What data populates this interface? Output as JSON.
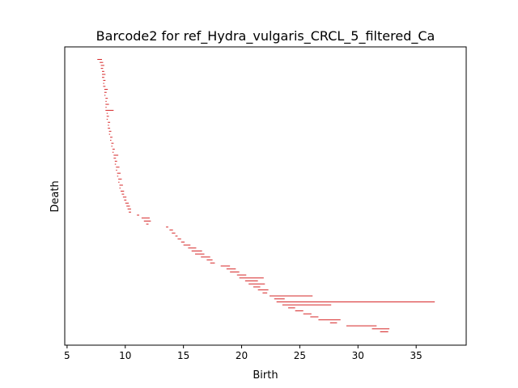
{
  "chart_data": {
    "type": "barcode",
    "title": "Barcode2 for ref_Hydra_vulgaris_CRCL_5_filtered_Ca",
    "xlabel": "Birth",
    "ylabel": "Death",
    "xlim": [
      4.8,
      39.3
    ],
    "xticks": [
      5,
      10,
      15,
      20,
      25,
      30,
      35
    ],
    "xtick_labels": [
      "5",
      "10",
      "15",
      "20",
      "25",
      "30",
      "35"
    ],
    "yticks_shown": false,
    "grid": false,
    "bar_color": "#d62728",
    "intervals": [
      [
        7.6,
        8.0
      ],
      [
        7.8,
        8.1
      ],
      [
        7.9,
        8.2
      ],
      [
        7.9,
        8.1
      ],
      [
        8.0,
        8.2
      ],
      [
        8.0,
        8.3
      ],
      [
        8.0,
        8.2
      ],
      [
        8.1,
        8.3
      ],
      [
        8.1,
        8.2
      ],
      [
        8.1,
        8.3
      ],
      [
        8.2,
        8.5
      ],
      [
        8.2,
        8.4
      ],
      [
        8.2,
        8.3
      ],
      [
        8.3,
        8.5
      ],
      [
        8.3,
        8.4
      ],
      [
        8.3,
        8.6
      ],
      [
        8.3,
        8.4
      ],
      [
        8.3,
        9.0
      ],
      [
        8.4,
        8.5
      ],
      [
        8.4,
        8.6
      ],
      [
        8.4,
        8.5
      ],
      [
        8.5,
        8.7
      ],
      [
        8.5,
        8.6
      ],
      [
        8.5,
        8.7
      ],
      [
        8.6,
        8.8
      ],
      [
        8.6,
        8.7
      ],
      [
        8.7,
        8.9
      ],
      [
        8.7,
        8.8
      ],
      [
        8.8,
        9.0
      ],
      [
        8.8,
        8.9
      ],
      [
        8.9,
        9.1
      ],
      [
        8.9,
        9.0
      ],
      [
        9.0,
        9.4
      ],
      [
        9.0,
        9.2
      ],
      [
        9.1,
        9.3
      ],
      [
        9.1,
        9.2
      ],
      [
        9.2,
        9.5
      ],
      [
        9.2,
        9.3
      ],
      [
        9.3,
        9.6
      ],
      [
        9.3,
        9.4
      ],
      [
        9.4,
        9.7
      ],
      [
        9.4,
        9.5
      ],
      [
        9.5,
        9.8
      ],
      [
        9.5,
        9.6
      ],
      [
        9.6,
        9.9
      ],
      [
        9.7,
        9.9
      ],
      [
        9.8,
        10.1
      ],
      [
        9.9,
        10.1
      ],
      [
        10.0,
        10.3
      ],
      [
        10.1,
        10.4
      ],
      [
        10.2,
        10.5
      ],
      [
        10.3,
        10.5
      ],
      [
        11.0,
        11.2
      ],
      [
        11.4,
        12.1
      ],
      [
        11.6,
        12.2
      ],
      [
        11.8,
        12.0
      ],
      [
        13.5,
        13.7
      ],
      [
        13.8,
        14.1
      ],
      [
        14.0,
        14.3
      ],
      [
        14.3,
        14.5
      ],
      [
        14.5,
        14.8
      ],
      [
        14.8,
        15.1
      ],
      [
        15.0,
        15.6
      ],
      [
        15.4,
        16.1
      ],
      [
        15.7,
        16.6
      ],
      [
        16.0,
        16.8
      ],
      [
        16.5,
        17.3
      ],
      [
        17.0,
        17.5
      ],
      [
        17.3,
        17.7
      ],
      [
        18.2,
        19.0
      ],
      [
        18.7,
        19.5
      ],
      [
        19.0,
        19.8
      ],
      [
        19.6,
        20.4
      ],
      [
        19.8,
        21.9
      ],
      [
        20.3,
        21.4
      ],
      [
        20.6,
        22.0
      ],
      [
        21.0,
        21.6
      ],
      [
        21.4,
        22.3
      ],
      [
        21.8,
        22.2
      ],
      [
        22.4,
        26.1
      ],
      [
        22.8,
        23.7
      ],
      [
        23.0,
        36.6
      ],
      [
        23.5,
        27.7
      ],
      [
        24.0,
        24.6
      ],
      [
        24.6,
        25.3
      ],
      [
        25.3,
        26.0
      ],
      [
        25.9,
        26.6
      ],
      [
        26.6,
        28.5
      ],
      [
        27.6,
        28.2
      ],
      [
        29.0,
        31.6
      ],
      [
        31.2,
        32.7
      ],
      [
        31.9,
        32.6
      ]
    ]
  }
}
